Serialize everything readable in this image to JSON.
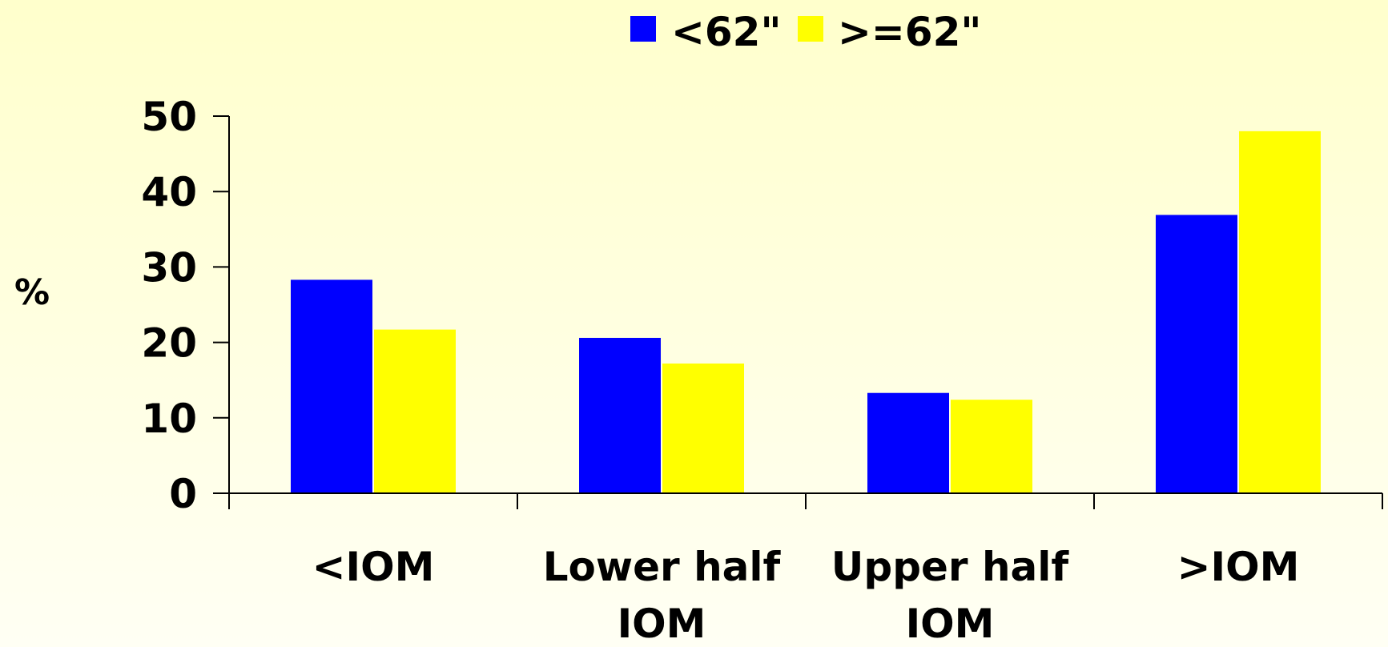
{
  "chart_data": {
    "type": "bar",
    "title": "",
    "xlabel": "",
    "ylabel": "%",
    "ylim": [
      0,
      50
    ],
    "yticks": [
      0,
      10,
      20,
      30,
      40,
      50
    ],
    "grid": false,
    "legend_position": "top",
    "categories": [
      [
        "<IOM"
      ],
      [
        "Lower half",
        "IOM"
      ],
      [
        "Upper half",
        "IOM"
      ],
      [
        ">IOM"
      ]
    ],
    "series": [
      {
        "name": "<62\"",
        "color": "#0000ff",
        "values": [
          28.3,
          20.6,
          13.3,
          36.9
        ]
      },
      {
        "name": ">=62\"",
        "color": "#ffff00",
        "values": [
          21.7,
          17.2,
          12.4,
          48
        ]
      }
    ]
  }
}
